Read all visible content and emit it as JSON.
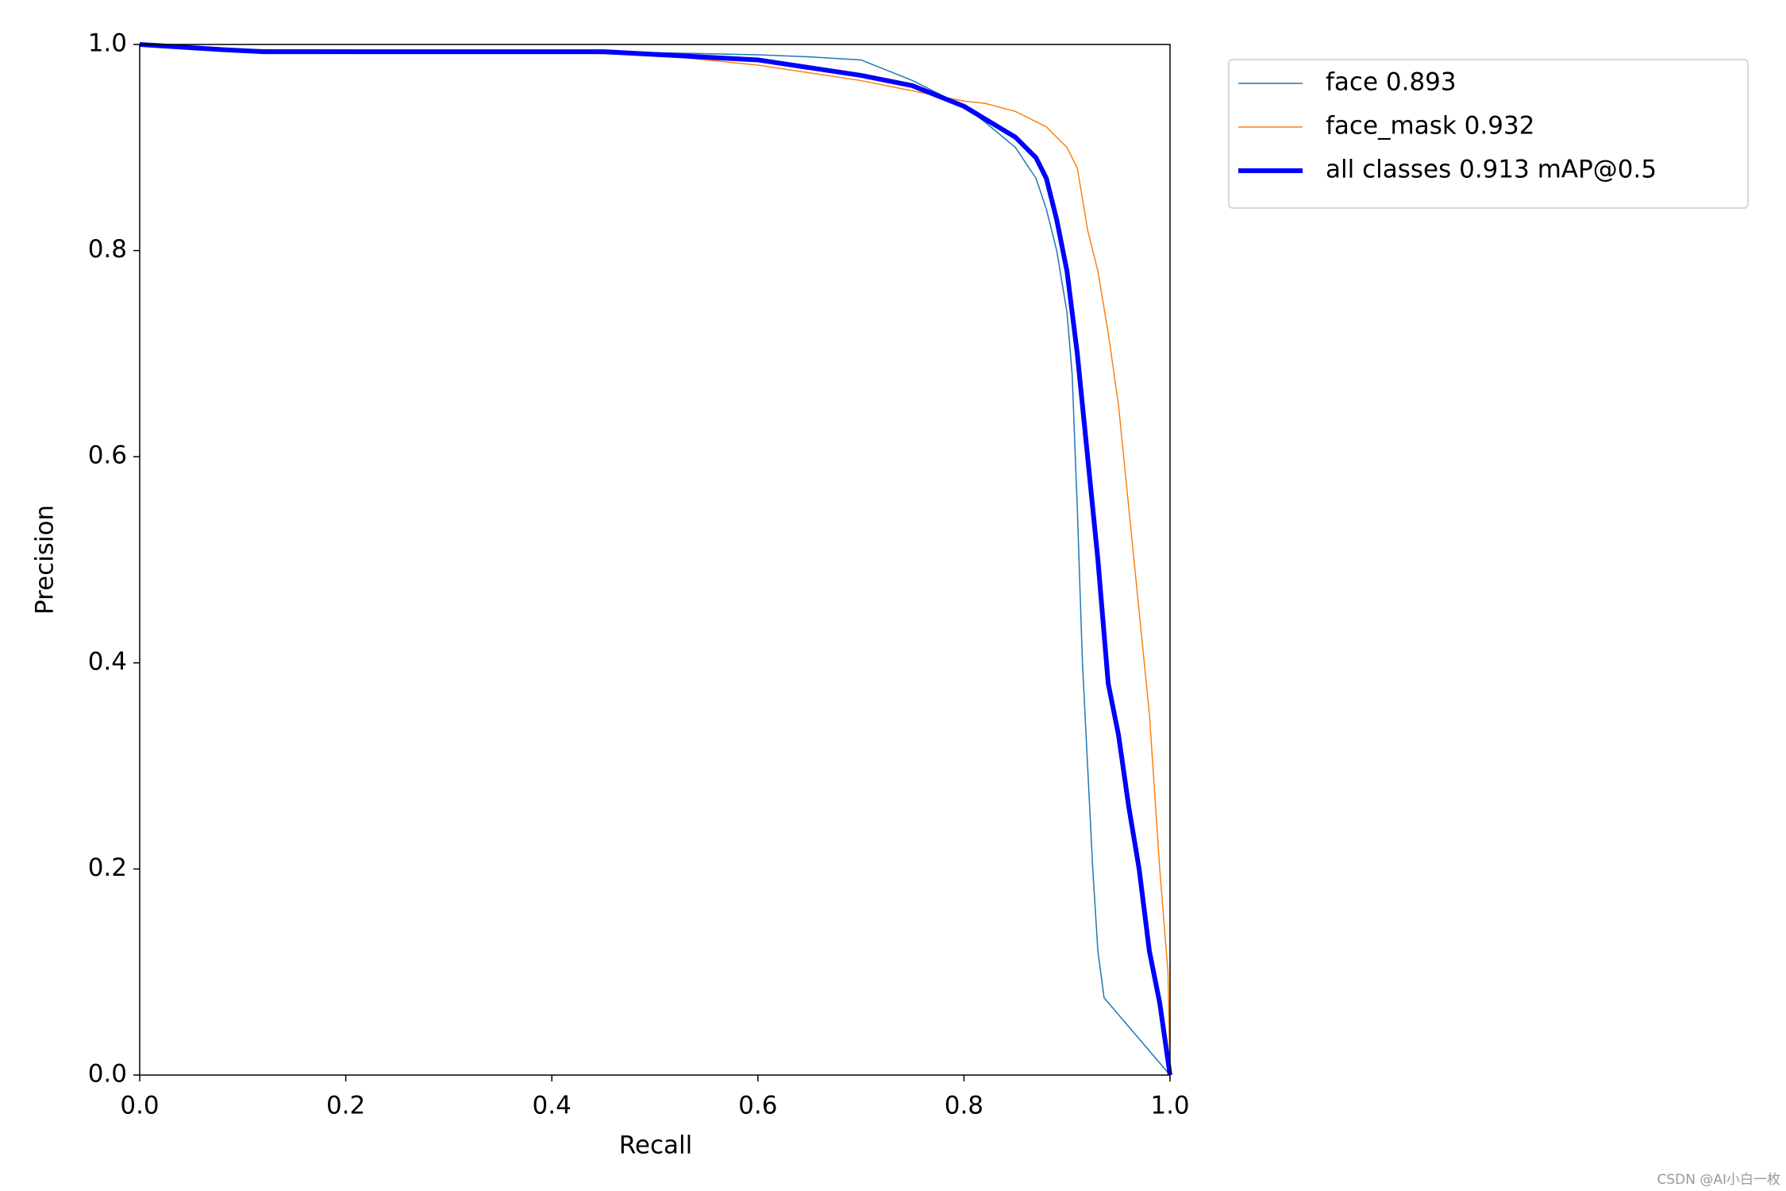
{
  "chart_data": {
    "type": "line",
    "xlabel": "Recall",
    "ylabel": "Precision",
    "xlim": [
      0,
      1
    ],
    "ylim": [
      0,
      1
    ],
    "xticks": [
      {
        "value": 0,
        "label": "0.0"
      },
      0.2,
      0.4,
      0.6,
      0.8,
      {
        "value": 1,
        "label": "1.0"
      }
    ],
    "yticks": [
      {
        "value": 0,
        "label": "0.0"
      },
      0.2,
      0.4,
      0.6,
      0.8,
      {
        "value": 1,
        "label": "1.0"
      }
    ],
    "legend": "outside-upper-right",
    "series": [
      {
        "name": "face 0.893",
        "color": "#1f77b4",
        "linewidth": 1.5,
        "x": [
          0,
          0.1,
          0.3,
          0.5,
          0.6,
          0.65,
          0.7,
          0.75,
          0.78,
          0.8,
          0.82,
          0.85,
          0.87,
          0.88,
          0.89,
          0.9,
          0.905,
          0.91,
          0.915,
          0.92,
          0.925,
          0.93,
          0.936,
          1.0
        ],
        "values": [
          1.0,
          0.995,
          0.994,
          0.992,
          0.99,
          0.988,
          0.985,
          0.965,
          0.95,
          0.94,
          0.925,
          0.9,
          0.87,
          0.84,
          0.8,
          0.74,
          0.68,
          0.55,
          0.4,
          0.3,
          0.2,
          0.12,
          0.075,
          0
        ]
      },
      {
        "name": "face_mask 0.932",
        "color": "#ff7f0e",
        "linewidth": 1.5,
        "x": [
          0,
          0.1,
          0.3,
          0.5,
          0.6,
          0.7,
          0.75,
          0.8,
          0.82,
          0.85,
          0.88,
          0.9,
          0.91,
          0.92,
          0.93,
          0.94,
          0.95,
          0.96,
          0.97,
          0.98,
          0.99,
          0.998,
          1.0
        ],
        "values": [
          1.0,
          0.995,
          0.994,
          0.99,
          0.98,
          0.965,
          0.955,
          0.945,
          0.943,
          0.935,
          0.92,
          0.9,
          0.88,
          0.82,
          0.78,
          0.72,
          0.65,
          0.55,
          0.45,
          0.35,
          0.2,
          0.1,
          0
        ]
      },
      {
        "name": "all classes 0.913 mAP@0.5",
        "color": "#0000ff",
        "linewidth": 6,
        "x": [
          0,
          0.08,
          0.12,
          0.45,
          0.6,
          0.7,
          0.75,
          0.8,
          0.85,
          0.87,
          0.88,
          0.89,
          0.9,
          0.91,
          0.92,
          0.93,
          0.94,
          0.95,
          0.96,
          0.97,
          0.98,
          0.99,
          1.0
        ],
        "values": [
          1.0,
          0.995,
          0.993,
          0.993,
          0.985,
          0.97,
          0.96,
          0.94,
          0.91,
          0.89,
          0.87,
          0.83,
          0.78,
          0.7,
          0.6,
          0.5,
          0.38,
          0.33,
          0.26,
          0.2,
          0.12,
          0.07,
          0
        ]
      }
    ]
  },
  "watermark": "CSDN @AI小白一枚"
}
